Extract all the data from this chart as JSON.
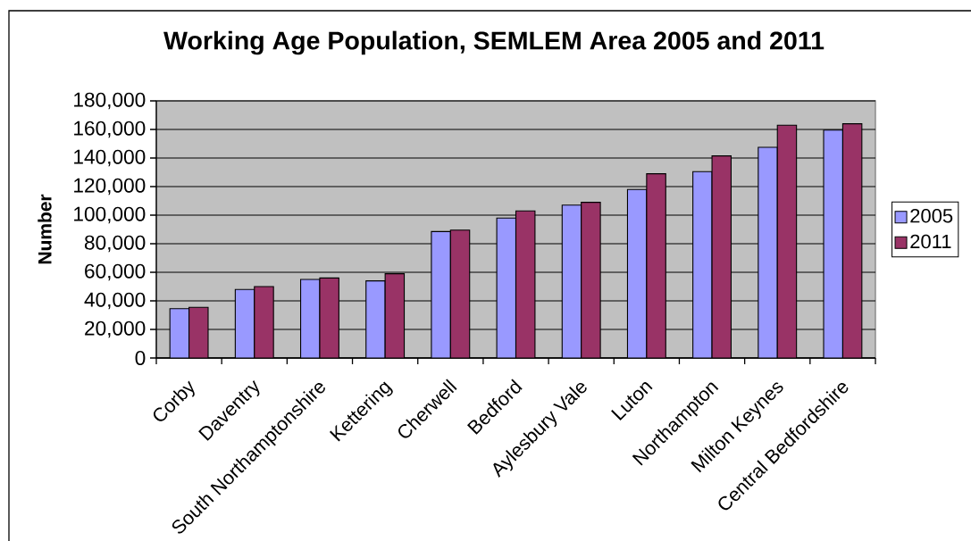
{
  "chart_data": {
    "type": "bar",
    "title": "Working Age Population, SEMLEM Area 2005 and 2011",
    "ylabel": "Number",
    "categories": [
      "Corby",
      "Daventry",
      "South Northamptonshire",
      "Kettering",
      "Cherwell",
      "Bedford",
      "Aylesbury Vale",
      "Luton",
      "Northampton",
      "Milton Keynes",
      "Central Bedfordshire"
    ],
    "series": [
      {
        "name": "2005",
        "color": "#9999ff",
        "values": [
          34500,
          48000,
          55000,
          54000,
          88500,
          98000,
          107000,
          118000,
          130500,
          147500,
          159500
        ]
      },
      {
        "name": "2011",
        "color": "#993366",
        "values": [
          35500,
          50000,
          56000,
          59000,
          89500,
          103000,
          109000,
          129000,
          141500,
          163000,
          164000
        ]
      }
    ],
    "ylim": [
      0,
      180000
    ],
    "yticks": [
      {
        "value": 0,
        "label": "0"
      },
      {
        "value": 20000,
        "label": "20,000"
      },
      {
        "value": 40000,
        "label": "40,000"
      },
      {
        "value": 60000,
        "label": "60,000"
      },
      {
        "value": 80000,
        "label": "80,000"
      },
      {
        "value": 100000,
        "label": "100,000"
      },
      {
        "value": 120000,
        "label": "120,000"
      },
      {
        "value": 140000,
        "label": "140,000"
      },
      {
        "value": 160000,
        "label": "160,000"
      },
      {
        "value": 180000,
        "label": "180,000"
      }
    ],
    "grid": "y",
    "legend": "right"
  }
}
